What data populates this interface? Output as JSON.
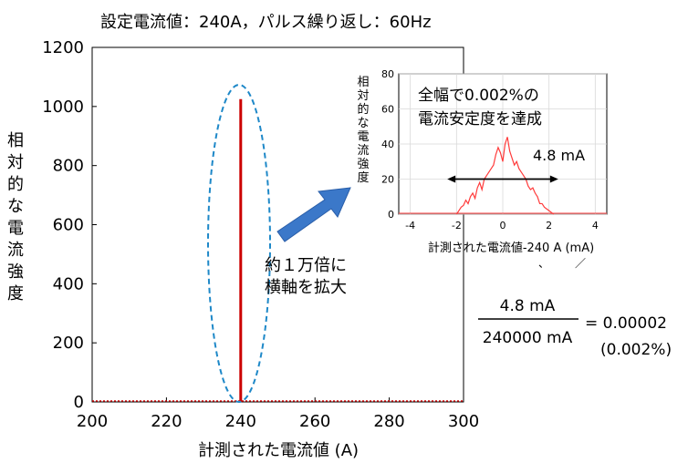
{
  "header": "設定電流値：240A，パルス繰り返し：60Hz",
  "chart_data": [
    {
      "id": "main",
      "type": "line",
      "xlabel": "計測された電流値 (A)",
      "ylabel": "相対的な電流強度",
      "xlim": [
        200,
        300
      ],
      "ylim": [
        0,
        1200
      ],
      "xticks": [
        200,
        220,
        240,
        260,
        280,
        300
      ],
      "yticks": [
        0,
        200,
        400,
        600,
        800,
        1000,
        1200
      ],
      "grid": false,
      "series": [
        {
          "x": [
            240,
            240
          ],
          "y": [
            0,
            1025
          ],
          "color": "#cc0000"
        }
      ],
      "baseline_color": "#cc0000"
    },
    {
      "id": "inset",
      "type": "line",
      "xlabel": "計測された電流値-240 A (mA)",
      "ylabel": "相対的な電流強度",
      "xlim": [
        -4.5,
        4.5
      ],
      "ylim": [
        0,
        80
      ],
      "xticks": [
        -4,
        -2,
        0,
        2,
        4
      ],
      "yticks": [
        0,
        20,
        40,
        60,
        80
      ],
      "grid": true,
      "series": [
        {
          "color": "#ff3b3b",
          "x": [
            -2.0,
            -1.9,
            -1.8,
            -1.7,
            -1.6,
            -1.5,
            -1.4,
            -1.3,
            -1.2,
            -1.1,
            -1.0,
            -0.9,
            -0.8,
            -0.7,
            -0.6,
            -0.5,
            -0.4,
            -0.3,
            -0.2,
            -0.1,
            0.0,
            0.1,
            0.2,
            0.3,
            0.4,
            0.5,
            0.6,
            0.7,
            0.8,
            0.9,
            1.0,
            1.1,
            1.2,
            1.3,
            1.4,
            1.5,
            1.6,
            1.7,
            1.8,
            1.9,
            2.0,
            2.1,
            2.2
          ],
          "y": [
            0,
            2,
            4,
            5,
            8,
            6,
            10,
            12,
            9,
            15,
            18,
            14,
            20,
            22,
            24,
            26,
            28,
            34,
            38,
            35,
            30,
            40,
            44,
            36,
            32,
            28,
            30,
            26,
            24,
            22,
            20,
            16,
            14,
            15,
            12,
            10,
            6,
            6,
            4,
            3,
            2,
            1,
            0
          ]
        }
      ],
      "annotations": {
        "title_line1": "全幅で0.002%の",
        "title_line2": "電流安定度を達成",
        "width_label": "4.8 mA",
        "width_range": [
          -2.4,
          2.4
        ],
        "width_level": 20
      }
    }
  ],
  "callout": {
    "line1": "約１万倍に",
    "line2": "横軸を拡大"
  },
  "formula": {
    "numerator": "4.8 mA",
    "denominator": "240000 mA",
    "result": "= 0.00002",
    "percent": "(0.002%)"
  },
  "colors": {
    "accent_red": "#cc0000",
    "ellipse": "#1e88c8",
    "arrow": "#3b78c9"
  },
  "stray_marks": [
    "、",
    "／"
  ]
}
